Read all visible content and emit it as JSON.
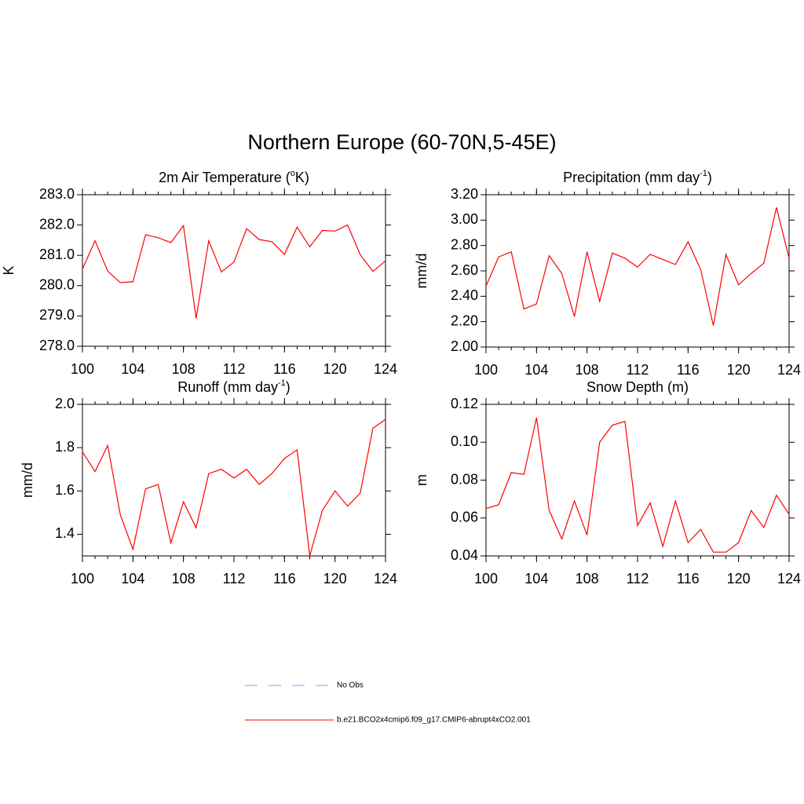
{
  "title": "Northern Europe (60-70N,5-45E)",
  "legend": [
    {
      "name": "No Obs",
      "color": "#9a9aff",
      "style": "dashed"
    },
    {
      "name": "b.e21.BCO2x4cmip6.f09_g17.CMIP6-abrupt4xCO2.001",
      "color": "#ff0000",
      "style": "solid"
    }
  ],
  "chart_data": [
    {
      "type": "line",
      "title": [
        "2m Air Temperature (",
        "o",
        "K)"
      ],
      "y_label": "K",
      "color": "#ff0000",
      "x": [
        100,
        101,
        102,
        103,
        104,
        105,
        106,
        107,
        108,
        109,
        110,
        111,
        112,
        113,
        114,
        115,
        116,
        117,
        118,
        119,
        120,
        121,
        122,
        123,
        124
      ],
      "values": [
        280.55,
        281.48,
        280.48,
        280.1,
        280.13,
        281.68,
        281.58,
        281.42,
        281.98,
        278.92,
        281.48,
        280.45,
        280.78,
        281.88,
        281.52,
        281.45,
        281.03,
        281.93,
        281.28,
        281.82,
        281.8,
        282.0,
        281.02,
        280.47,
        280.82
      ],
      "xlim": [
        100,
        124
      ],
      "xticks": [
        100,
        104,
        108,
        112,
        116,
        120,
        124
      ],
      "ylim": [
        278,
        283
      ],
      "yticks": [
        {
          "value": 278,
          "label": "278.0"
        },
        {
          "value": 279,
          "label": "279.0"
        },
        {
          "value": 280,
          "label": "280.0"
        },
        {
          "value": 281,
          "label": "281.0"
        },
        {
          "value": 282,
          "label": "282.0"
        },
        {
          "value": 283,
          "label": "283.0"
        }
      ]
    },
    {
      "type": "line",
      "title": [
        "Precipitation (mm day",
        "-1",
        ")"
      ],
      "y_label": "mm/d",
      "color": "#ff0000",
      "x": [
        100,
        101,
        102,
        103,
        104,
        105,
        106,
        107,
        108,
        109,
        110,
        111,
        112,
        113,
        114,
        115,
        116,
        117,
        118,
        119,
        120,
        121,
        122,
        123,
        124
      ],
      "values": [
        2.48,
        2.71,
        2.75,
        2.3,
        2.34,
        2.72,
        2.58,
        2.24,
        2.75,
        2.36,
        2.74,
        2.7,
        2.63,
        2.73,
        2.69,
        2.65,
        2.83,
        2.61,
        2.17,
        2.73,
        2.49,
        2.58,
        2.66,
        3.1,
        2.7
      ],
      "xlim": [
        100,
        124
      ],
      "xticks": [
        100,
        104,
        108,
        112,
        116,
        120,
        124
      ],
      "ylim": [
        2.0,
        3.2
      ],
      "yticks": [
        {
          "value": 2.0,
          "label": "2.00"
        },
        {
          "value": 2.2,
          "label": "2.20"
        },
        {
          "value": 2.4,
          "label": "2.40"
        },
        {
          "value": 2.6,
          "label": "2.60"
        },
        {
          "value": 2.8,
          "label": "2.80"
        },
        {
          "value": 3.0,
          "label": "3.00"
        },
        {
          "value": 3.2,
          "label": "3.20"
        }
      ]
    },
    {
      "type": "line",
      "title": [
        "Runoff (mm day",
        "-1",
        ")"
      ],
      "y_label": "mm/d",
      "color": "#ff0000",
      "x": [
        100,
        101,
        102,
        103,
        104,
        105,
        106,
        107,
        108,
        109,
        110,
        111,
        112,
        113,
        114,
        115,
        116,
        117,
        118,
        119,
        120,
        121,
        122,
        123,
        124
      ],
      "values": [
        1.78,
        1.69,
        1.81,
        1.49,
        1.33,
        1.61,
        1.63,
        1.36,
        1.55,
        1.43,
        1.68,
        1.7,
        1.66,
        1.7,
        1.63,
        1.68,
        1.75,
        1.79,
        1.3,
        1.51,
        1.6,
        1.53,
        1.59,
        1.89,
        1.93
      ],
      "xlim": [
        100,
        124
      ],
      "xticks": [
        100,
        104,
        108,
        112,
        116,
        120,
        124
      ],
      "ylim": [
        1.3,
        2.0
      ],
      "yticks": [
        1.4,
        1.6,
        1.8,
        {
          "value": 2.0,
          "label": "2.0"
        }
      ]
    },
    {
      "type": "line",
      "title": [
        "Snow Depth (m)"
      ],
      "y_label": "m",
      "color": "#ff0000",
      "x": [
        100,
        101,
        102,
        103,
        104,
        105,
        106,
        107,
        108,
        109,
        110,
        111,
        112,
        113,
        114,
        115,
        116,
        117,
        118,
        119,
        120,
        121,
        122,
        123,
        124
      ],
      "values": [
        0.065,
        0.067,
        0.084,
        0.083,
        0.113,
        0.064,
        0.049,
        0.069,
        0.051,
        0.1,
        0.109,
        0.111,
        0.056,
        0.068,
        0.045,
        0.069,
        0.047,
        0.054,
        0.042,
        0.042,
        0.047,
        0.064,
        0.055,
        0.072,
        0.062
      ],
      "xlim": [
        100,
        124
      ],
      "xticks": [
        100,
        104,
        108,
        112,
        116,
        120,
        124
      ],
      "ylim": [
        0.04,
        0.12
      ],
      "yticks": [
        0.04,
        0.06,
        0.08,
        {
          "value": 0.1,
          "label": "0.10"
        },
        0.12
      ]
    }
  ]
}
